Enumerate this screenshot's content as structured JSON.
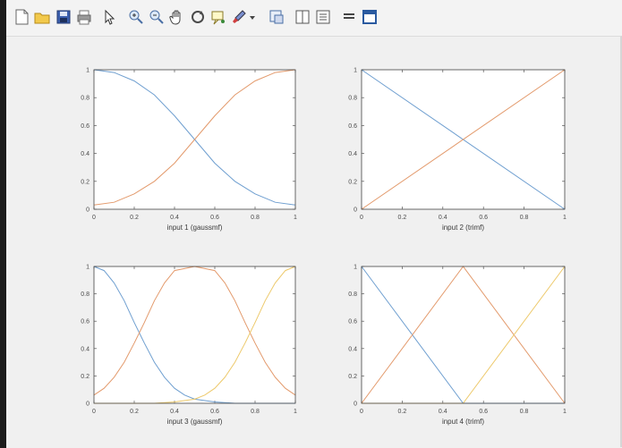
{
  "toolbar": {
    "buttons": [
      {
        "name": "new-figure-icon"
      },
      {
        "name": "open-file-icon"
      },
      {
        "name": "save-figure-icon"
      },
      {
        "name": "print-figure-icon"
      },
      {
        "name": "edit-plot-cursor-icon"
      },
      {
        "name": "zoom-in-icon"
      },
      {
        "name": "zoom-out-icon"
      },
      {
        "name": "pan-hand-icon"
      },
      {
        "name": "rotate-3d-icon"
      },
      {
        "name": "data-cursor-icon"
      },
      {
        "name": "brush-icon"
      },
      {
        "name": "brush-dropdown-icon"
      },
      {
        "name": "link-plot-icon"
      },
      {
        "name": "insert-colorbar-icon"
      },
      {
        "name": "insert-legend-icon"
      },
      {
        "name": "hide-plot-tools-icon"
      },
      {
        "name": "show-plot-tools-icon"
      }
    ]
  },
  "colors": {
    "series1": "#6f9fd0",
    "series2": "#e39a6c",
    "series3": "#edc96b",
    "axes_box": "#444444"
  },
  "chart_data": [
    {
      "type": "line",
      "xlabel": "input 1 (gaussmf)",
      "xlim": [
        0,
        1
      ],
      "ylim": [
        0,
        1
      ],
      "xticks": [
        "0",
        "0.2",
        "0.4",
        "0.6",
        "0.8",
        "1"
      ],
      "yticks": [
        "0",
        "0.2",
        "0.4",
        "0.6",
        "0.8",
        "1"
      ],
      "grid": false,
      "series": [
        {
          "values": [
            [
              0,
              1.0
            ],
            [
              0.1,
              0.98
            ],
            [
              0.2,
              0.92
            ],
            [
              0.3,
              0.82
            ],
            [
              0.4,
              0.67
            ],
            [
              0.5,
              0.5
            ],
            [
              0.6,
              0.33
            ],
            [
              0.7,
              0.2
            ],
            [
              0.8,
              0.11
            ],
            [
              0.9,
              0.05
            ],
            [
              1,
              0.03
            ]
          ]
        },
        {
          "values": [
            [
              0,
              0.03
            ],
            [
              0.1,
              0.05
            ],
            [
              0.2,
              0.11
            ],
            [
              0.3,
              0.2
            ],
            [
              0.4,
              0.33
            ],
            [
              0.5,
              0.5
            ],
            [
              0.6,
              0.67
            ],
            [
              0.7,
              0.82
            ],
            [
              0.8,
              0.92
            ],
            [
              0.9,
              0.98
            ],
            [
              1,
              1.0
            ]
          ]
        }
      ]
    },
    {
      "type": "line",
      "xlabel": "input 2 (trimf)",
      "xlim": [
        0,
        1
      ],
      "ylim": [
        0,
        1
      ],
      "xticks": [
        "0",
        "0.2",
        "0.4",
        "0.6",
        "0.8",
        "1"
      ],
      "yticks": [
        "0",
        "0.2",
        "0.4",
        "0.6",
        "0.8",
        "1"
      ],
      "grid": false,
      "series": [
        {
          "values": [
            [
              0,
              1
            ],
            [
              1,
              0
            ]
          ]
        },
        {
          "values": [
            [
              0,
              0
            ],
            [
              1,
              1
            ]
          ]
        }
      ]
    },
    {
      "type": "line",
      "xlabel": "input 3 (gaussmf)",
      "xlim": [
        0,
        1
      ],
      "ylim": [
        0,
        1
      ],
      "xticks": [
        "0",
        "0.2",
        "0.4",
        "0.6",
        "0.8",
        "1"
      ],
      "yticks": [
        "0",
        "0.2",
        "0.4",
        "0.6",
        "0.8",
        "1"
      ],
      "grid": false,
      "series": [
        {
          "values": [
            [
              0,
              1.0
            ],
            [
              0.05,
              0.97
            ],
            [
              0.1,
              0.88
            ],
            [
              0.15,
              0.75
            ],
            [
              0.2,
              0.59
            ],
            [
              0.25,
              0.44
            ],
            [
              0.3,
              0.3
            ],
            [
              0.35,
              0.19
            ],
            [
              0.4,
              0.11
            ],
            [
              0.45,
              0.06
            ],
            [
              0.5,
              0.03
            ],
            [
              0.6,
              0.01
            ],
            [
              0.7,
              0.0
            ],
            [
              1,
              0.0
            ]
          ]
        },
        {
          "values": [
            [
              0,
              0.06
            ],
            [
              0.05,
              0.11
            ],
            [
              0.1,
              0.19
            ],
            [
              0.15,
              0.3
            ],
            [
              0.2,
              0.44
            ],
            [
              0.25,
              0.59
            ],
            [
              0.3,
              0.75
            ],
            [
              0.35,
              0.88
            ],
            [
              0.4,
              0.97
            ],
            [
              0.5,
              1.0
            ],
            [
              0.6,
              0.97
            ],
            [
              0.65,
              0.88
            ],
            [
              0.7,
              0.75
            ],
            [
              0.75,
              0.59
            ],
            [
              0.8,
              0.44
            ],
            [
              0.85,
              0.3
            ],
            [
              0.9,
              0.19
            ],
            [
              0.95,
              0.11
            ],
            [
              1,
              0.06
            ]
          ]
        },
        {
          "values": [
            [
              0,
              0.0
            ],
            [
              0.3,
              0.0
            ],
            [
              0.4,
              0.01
            ],
            [
              0.5,
              0.03
            ],
            [
              0.55,
              0.06
            ],
            [
              0.6,
              0.11
            ],
            [
              0.65,
              0.19
            ],
            [
              0.7,
              0.3
            ],
            [
              0.75,
              0.44
            ],
            [
              0.8,
              0.59
            ],
            [
              0.85,
              0.75
            ],
            [
              0.9,
              0.88
            ],
            [
              0.95,
              0.97
            ],
            [
              1,
              1.0
            ]
          ]
        }
      ]
    },
    {
      "type": "line",
      "xlabel": "input 4 (trimf)",
      "xlim": [
        0,
        1
      ],
      "ylim": [
        0,
        1
      ],
      "xticks": [
        "0",
        "0.2",
        "0.4",
        "0.6",
        "0.8",
        "1"
      ],
      "yticks": [
        "0",
        "0.2",
        "0.4",
        "0.6",
        "0.8",
        "1"
      ],
      "grid": false,
      "series": [
        {
          "values": [
            [
              0,
              1
            ],
            [
              0.5,
              0
            ],
            [
              1,
              0
            ]
          ]
        },
        {
          "values": [
            [
              0,
              0
            ],
            [
              0.5,
              1
            ],
            [
              1,
              0
            ]
          ]
        },
        {
          "values": [
            [
              0,
              0
            ],
            [
              0.5,
              0
            ],
            [
              1,
              1
            ]
          ]
        }
      ]
    }
  ]
}
